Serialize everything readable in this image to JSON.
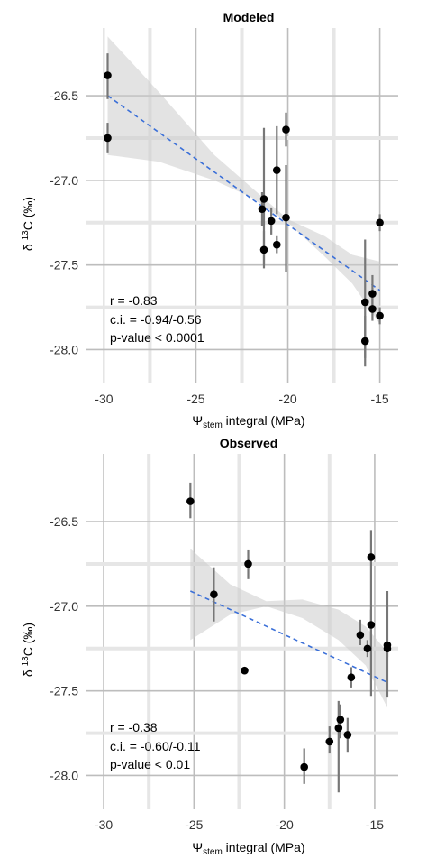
{
  "chart_data": [
    {
      "type": "scatter",
      "title": "Modeled",
      "xlabel_symbol": "Ψ",
      "xlabel_sub": "stem",
      "xlabel_rest": " integral (MPa)",
      "ylabel_prefix": "δ ",
      "ylabel_sup": "13",
      "ylabel_rest": "C (‰)",
      "xlim": [
        -31,
        -14
      ],
      "ylim": [
        -28.2,
        -26.1
      ],
      "xticks": [
        -30,
        -25,
        -20,
        -15
      ],
      "xtick_labels": [
        "-30",
        "-25",
        "-20",
        "-15"
      ],
      "yticks": [
        -28.0,
        -27.5,
        -27.0,
        -26.5
      ],
      "ytick_labels": [
        "-28.0",
        "-27.5",
        "-27.0",
        "-26.5"
      ],
      "grid": true,
      "points": [
        {
          "x": -29.8,
          "y": -26.38,
          "ylo": -26.52,
          "yhi": -26.25
        },
        {
          "x": -29.8,
          "y": -26.75,
          "ylo": -26.84,
          "yhi": -26.66
        },
        {
          "x": -21.4,
          "y": -27.17,
          "ylo": -27.27,
          "yhi": -27.07
        },
        {
          "x": -21.3,
          "y": -27.11,
          "ylo": -27.5,
          "yhi": -26.69
        },
        {
          "x": -21.3,
          "y": -27.41,
          "ylo": -27.52,
          "yhi": -27.3
        },
        {
          "x": -20.9,
          "y": -27.24,
          "ylo": -27.32,
          "yhi": -27.16
        },
        {
          "x": -20.6,
          "y": -26.94,
          "ylo": -27.2,
          "yhi": -26.68
        },
        {
          "x": -20.6,
          "y": -27.38,
          "ylo": -27.43,
          "yhi": -27.33
        },
        {
          "x": -20.1,
          "y": -26.7,
          "ylo": -26.8,
          "yhi": -26.6
        },
        {
          "x": -20.1,
          "y": -27.22,
          "ylo": -27.54,
          "yhi": -26.91
        },
        {
          "x": -15.8,
          "y": -27.72,
          "ylo": -28.05,
          "yhi": -27.35
        },
        {
          "x": -15.8,
          "y": -27.95,
          "ylo": -28.1,
          "yhi": -27.8
        },
        {
          "x": -15.4,
          "y": -27.67,
          "ylo": -27.78,
          "yhi": -27.56
        },
        {
          "x": -15.4,
          "y": -27.76,
          "ylo": -27.83,
          "yhi": -27.69
        },
        {
          "x": -15.0,
          "y": -27.25,
          "ylo": -27.3,
          "yhi": -27.2
        },
        {
          "x": -15.0,
          "y": -27.8,
          "ylo": -27.85,
          "yhi": -27.75
        }
      ],
      "fit": {
        "x": [
          -29.8,
          -15.0
        ],
        "y": [
          -26.5,
          -27.65
        ]
      },
      "band": {
        "x": [
          -29.8,
          -27.0,
          -24.0,
          -22.0,
          -20.0,
          -18.0,
          -16.5,
          -15.0
        ],
        "lo": [
          -26.85,
          -26.89,
          -27.0,
          -27.1,
          -27.25,
          -27.45,
          -27.61,
          -27.85
        ],
        "hi": [
          -26.15,
          -26.48,
          -26.85,
          -27.04,
          -27.23,
          -27.33,
          -27.44,
          -27.48
        ]
      },
      "annotations": [
        "r = -0.83",
        "c.i. = -0.94/-0.56",
        "p-value < 0.0001"
      ]
    },
    {
      "type": "scatter",
      "title": "Observed",
      "xlabel_symbol": "Ψ",
      "xlabel_sub": "stem",
      "xlabel_rest": " integral (MPa)",
      "ylabel_prefix": "δ ",
      "ylabel_sup": "13",
      "ylabel_rest": "C (‰)",
      "xlim": [
        -31,
        -13.7
      ],
      "ylim": [
        -28.2,
        -26.1
      ],
      "xticks": [
        -30,
        -25,
        -20,
        -15
      ],
      "xtick_labels": [
        "-30",
        "-25",
        "-20",
        "-15"
      ],
      "yticks": [
        -28.0,
        -27.5,
        -27.0,
        -26.5
      ],
      "ytick_labels": [
        "-28.0",
        "-27.5",
        "-27.0",
        "-26.5"
      ],
      "grid": true,
      "points": [
        {
          "x": -25.2,
          "y": -26.38,
          "ylo": -26.48,
          "yhi": -26.27
        },
        {
          "x": -23.9,
          "y": -26.93,
          "ylo": -27.09,
          "yhi": -26.77
        },
        {
          "x": -22.2,
          "y": -27.38,
          "ylo": -27.4,
          "yhi": -27.36
        },
        {
          "x": -22.0,
          "y": -26.75,
          "ylo": -26.84,
          "yhi": -26.67
        },
        {
          "x": -18.9,
          "y": -27.95,
          "ylo": -28.05,
          "yhi": -27.84
        },
        {
          "x": -17.5,
          "y": -27.8,
          "ylo": -27.87,
          "yhi": -27.71
        },
        {
          "x": -17.0,
          "y": -27.72,
          "ylo": -28.1,
          "yhi": -27.56
        },
        {
          "x": -16.9,
          "y": -27.67,
          "ylo": -27.78,
          "yhi": -27.58
        },
        {
          "x": -16.5,
          "y": -27.76,
          "ylo": -27.86,
          "yhi": -27.66
        },
        {
          "x": -16.3,
          "y": -27.42,
          "ylo": -27.48,
          "yhi": -27.36
        },
        {
          "x": -15.8,
          "y": -27.17,
          "ylo": -27.23,
          "yhi": -27.08
        },
        {
          "x": -15.4,
          "y": -27.25,
          "ylo": -27.3,
          "yhi": -27.2
        },
        {
          "x": -15.2,
          "y": -26.71,
          "ylo": -27.53,
          "yhi": -26.55
        },
        {
          "x": -15.2,
          "y": -27.11,
          "ylo": -27.2,
          "yhi": -27.02
        },
        {
          "x": -14.3,
          "y": -27.23,
          "ylo": -27.54,
          "yhi": -26.91
        },
        {
          "x": -14.3,
          "y": -27.25,
          "ylo": -27.3,
          "yhi": -27.2
        }
      ],
      "fit": {
        "x": [
          -25.2,
          -14.3
        ],
        "y": [
          -26.91,
          -27.45
        ]
      },
      "band": {
        "x": [
          -25.2,
          -23.0,
          -21.0,
          -19.0,
          -17.0,
          -15.5,
          -14.3
        ],
        "lo": [
          -27.2,
          -27.05,
          -27.0,
          -27.07,
          -27.2,
          -27.35,
          -27.6
        ],
        "hi": [
          -26.66,
          -26.87,
          -26.97,
          -26.96,
          -27.02,
          -27.12,
          -27.27
        ]
      },
      "annotations": [
        "r = -0.38",
        "c.i. = -0.60/-0.11",
        "p-value < 0.01"
      ]
    }
  ]
}
